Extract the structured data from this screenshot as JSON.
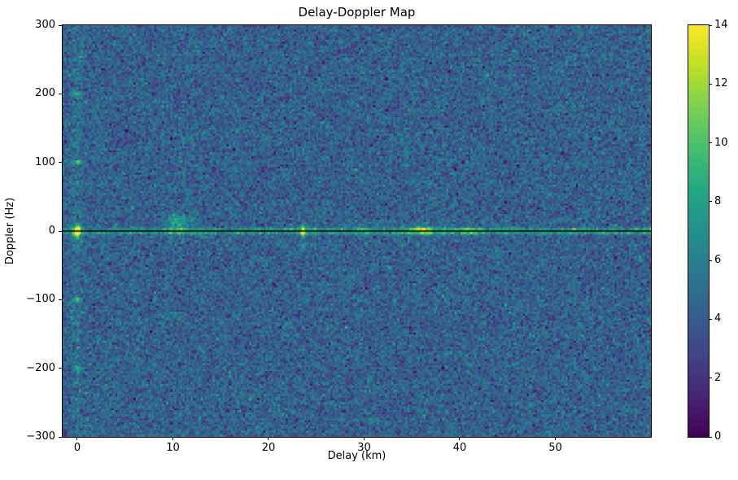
{
  "chart_data": {
    "type": "heatmap",
    "title": "Delay-Doppler Map",
    "xlabel": "Delay (km)",
    "ylabel": "Doppler (Hz)",
    "xlim": [
      -1.53,
      60
    ],
    "ylim": [
      -300,
      300
    ],
    "clim": [
      0,
      14
    ],
    "xtick_values": [
      0,
      10,
      20,
      30,
      40,
      50
    ],
    "xtick_labels": [
      "0",
      "10",
      "20",
      "30",
      "40",
      "50"
    ],
    "ytick_values": [
      300,
      200,
      100,
      0,
      -100,
      -200,
      -300
    ],
    "ytick_labels": [
      "300",
      "200",
      "100",
      "0",
      "−100",
      "−200",
      "−300"
    ],
    "colorbar_tick_values": [
      0,
      2,
      4,
      6,
      8,
      10,
      12,
      14
    ],
    "colorbar_tick_labels": [
      "0",
      "2",
      "4",
      "6",
      "8",
      "10",
      "12",
      "14"
    ],
    "colormap": "viridis",
    "colormap_stops": [
      [
        0.0,
        68,
        1,
        84
      ],
      [
        0.1,
        72,
        36,
        117
      ],
      [
        0.2,
        65,
        68,
        135
      ],
      [
        0.3,
        53,
        95,
        141
      ],
      [
        0.4,
        42,
        120,
        142
      ],
      [
        0.5,
        33,
        144,
        141
      ],
      [
        0.6,
        34,
        168,
        132
      ],
      [
        0.7,
        68,
        190,
        112
      ],
      [
        0.8,
        122,
        209,
        81
      ],
      [
        0.9,
        189,
        223,
        38
      ],
      [
        1.0,
        253,
        231,
        37
      ]
    ],
    "grid": {
      "nx": 290,
      "ny": 201
    },
    "seed": 42,
    "noise": {
      "mean": 4.3,
      "sd": 1.25
    },
    "zero_doppler_line": {
      "doppler_hz": 0,
      "base_amp": 3.6,
      "jitter_amp": 2.2,
      "sigma_hz": 3.0,
      "right_half_boost": 0.6,
      "pm100_row_amp": 0.4
    },
    "zero_delay_column": {
      "amp": 0.8,
      "sigma_km": 0.4
    },
    "zero_line_color": "#000000",
    "features": [
      {
        "delay_km": 0,
        "doppler_hz": 0,
        "amp": 9.5,
        "sigma_km": 0.22,
        "sigma_hz": 4.5
      },
      {
        "delay_km": 0,
        "doppler_hz": 0,
        "amp": 2.5,
        "sigma_km": 0.3,
        "sigma_hz": 11
      },
      {
        "delay_km": 10.6,
        "doppler_hz": 16,
        "amp": 4.2,
        "sigma_km": 0.9,
        "sigma_hz": 6
      },
      {
        "delay_km": 10.6,
        "doppler_hz": 2,
        "amp": 2.6,
        "sigma_km": 0.8,
        "sigma_hz": 4
      },
      {
        "delay_km": 10.6,
        "doppler_hz": -16,
        "amp": 1.4,
        "sigma_km": 0.7,
        "sigma_hz": 4
      },
      {
        "delay_km": 23.6,
        "doppler_hz": 0,
        "amp": 9.0,
        "sigma_km": 0.22,
        "sigma_hz": 5.5
      },
      {
        "delay_km": 23.8,
        "doppler_hz": -22,
        "amp": 2.0,
        "sigma_km": 0.4,
        "sigma_hz": 3.5
      },
      {
        "delay_km": 29.5,
        "doppler_hz": 4,
        "amp": 1.6,
        "sigma_km": 1.1,
        "sigma_hz": 5
      },
      {
        "delay_km": 36.2,
        "doppler_hz": 0,
        "amp": 4.5,
        "sigma_km": 0.9,
        "sigma_hz": 3.5
      },
      {
        "delay_km": 36.2,
        "doppler_hz": 5,
        "amp": 1.5,
        "sigma_km": 1.5,
        "sigma_hz": 6
      },
      {
        "delay_km": 41.0,
        "doppler_hz": 0,
        "amp": 2.2,
        "sigma_km": 0.9,
        "sigma_hz": 3
      },
      {
        "delay_km": 0,
        "doppler_hz": 100,
        "amp": 5.5,
        "sigma_km": 0.3,
        "sigma_hz": 2.2
      },
      {
        "delay_km": 0,
        "doppler_hz": -100,
        "amp": 6.5,
        "sigma_km": 0.3,
        "sigma_hz": 2.2
      },
      {
        "delay_km": 0,
        "doppler_hz": 200,
        "amp": 5.5,
        "sigma_km": 0.3,
        "sigma_hz": 2.2
      },
      {
        "delay_km": 0,
        "doppler_hz": -200,
        "amp": 5.0,
        "sigma_km": 0.3,
        "sigma_hz": 2.2
      }
    ]
  }
}
